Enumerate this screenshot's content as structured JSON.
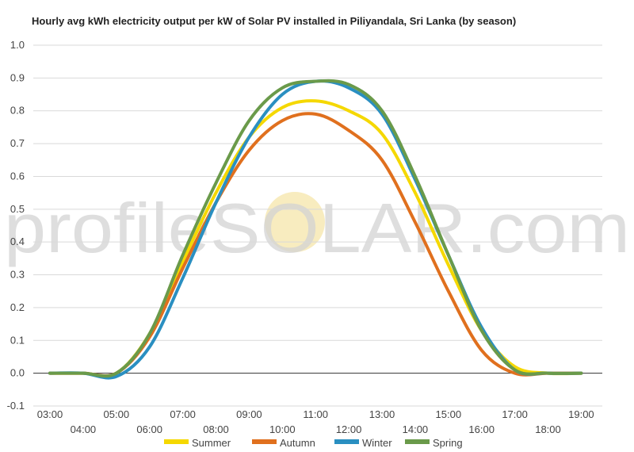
{
  "colors": {
    "summer": "#f5d800",
    "autumn": "#e0701e",
    "winter": "#2a8fc1",
    "spring": "#6a9a4a",
    "grid": "#d9d9d9",
    "zero_line": "#333333",
    "watermark_text": "#d3d3d3",
    "watermark_sun": "#f7e9b4"
  },
  "watermark": {
    "text": "profileSOLAR.com",
    "icon": "sun-watermark-icon"
  },
  "chart_data": {
    "type": "line",
    "title": "Hourly avg kWh electricity output per kW of Solar PV installed in Piliyandala, Sri Lanka (by season)",
    "xlabel": "",
    "ylabel": "",
    "ylim": [
      -0.1,
      1.0
    ],
    "y_ticks": [
      "-0.1",
      "0.0",
      "0.1",
      "0.2",
      "0.3",
      "0.4",
      "0.5",
      "0.6",
      "0.7",
      "0.8",
      "0.9",
      "1.0"
    ],
    "x": [
      "03:00",
      "04:00",
      "05:00",
      "06:00",
      "07:00",
      "08:00",
      "09:00",
      "10:00",
      "11:00",
      "12:00",
      "13:00",
      "14:00",
      "15:00",
      "16:00",
      "17:00",
      "18:00",
      "19:00"
    ],
    "grid": true,
    "legend_position": "bottom",
    "series": [
      {
        "name": "Summer",
        "color_key": "summer",
        "values": [
          0.0,
          0.0,
          0.0,
          0.12,
          0.34,
          0.55,
          0.72,
          0.81,
          0.83,
          0.8,
          0.73,
          0.55,
          0.33,
          0.13,
          0.02,
          0.0,
          0.0
        ]
      },
      {
        "name": "Autumn",
        "color_key": "autumn",
        "values": [
          0.0,
          0.0,
          0.0,
          0.11,
          0.32,
          0.52,
          0.68,
          0.77,
          0.79,
          0.74,
          0.65,
          0.46,
          0.25,
          0.07,
          0.0,
          0.0,
          0.0
        ]
      },
      {
        "name": "Winter",
        "color_key": "winter",
        "values": [
          0.0,
          0.0,
          -0.01,
          0.08,
          0.29,
          0.52,
          0.72,
          0.85,
          0.89,
          0.87,
          0.79,
          0.59,
          0.36,
          0.14,
          0.01,
          0.0,
          0.0
        ]
      },
      {
        "name": "Spring",
        "color_key": "spring",
        "values": [
          0.0,
          0.0,
          0.0,
          0.12,
          0.36,
          0.58,
          0.77,
          0.87,
          0.89,
          0.88,
          0.8,
          0.6,
          0.36,
          0.13,
          0.01,
          0.0,
          0.0
        ]
      }
    ]
  }
}
